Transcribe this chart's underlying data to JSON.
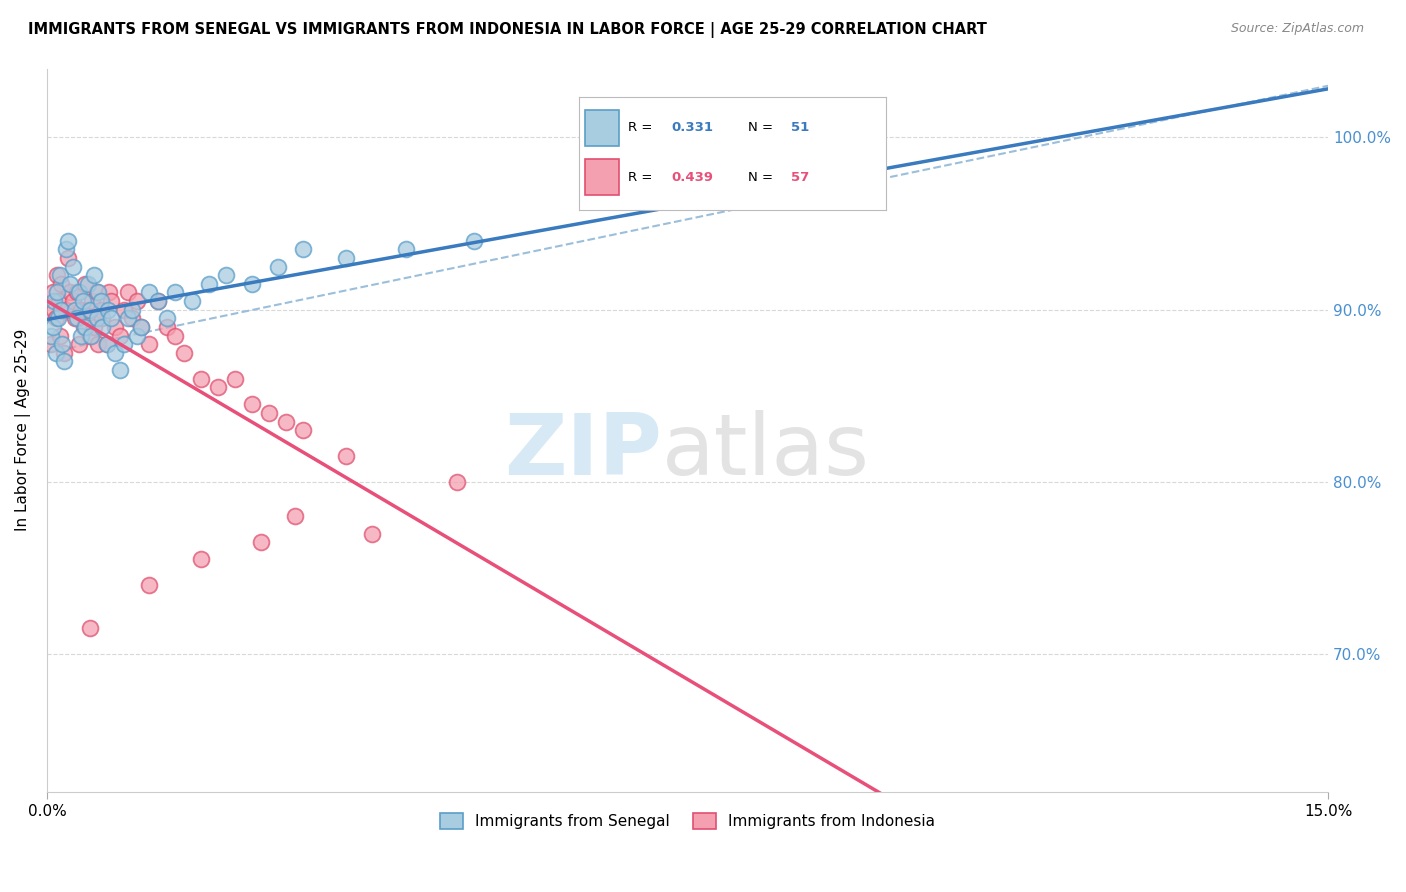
{
  "title": "IMMIGRANTS FROM SENEGAL VS IMMIGRANTS FROM INDONESIA IN LABOR FORCE | AGE 25-29 CORRELATION CHART",
  "source": "Source: ZipAtlas.com",
  "ylabel": "In Labor Force | Age 25-29",
  "xlim": [
    0.0,
    15.0
  ],
  "ylim": [
    62.0,
    104.0
  ],
  "yticks_right": [
    70.0,
    80.0,
    90.0,
    100.0
  ],
  "ytick_labels": [
    "70.0%",
    "80.0%",
    "90.0%",
    "100.0%"
  ],
  "color_blue_fill": "#a8cce0",
  "color_blue_edge": "#5b9ec9",
  "color_pink_fill": "#f4a0b0",
  "color_pink_edge": "#e05070",
  "color_blue_line": "#3a7abf",
  "color_pink_line": "#e8507a",
  "color_dashed": "#90b8d8",
  "color_grid": "#d8d8d8",
  "color_right_tick": "#4a90d0",
  "legend_r1": "0.331",
  "legend_n1": "51",
  "legend_r2": "0.439",
  "legend_n2": "57",
  "watermark_zip": "ZIP",
  "watermark_atlas": "atlas",
  "legend_label1": "Immigrants from Senegal",
  "legend_label2": "Immigrants from Indonesia",
  "senegal_x": [
    0.05,
    0.07,
    0.08,
    0.1,
    0.12,
    0.13,
    0.15,
    0.17,
    0.18,
    0.2,
    0.22,
    0.25,
    0.27,
    0.3,
    0.33,
    0.35,
    0.38,
    0.4,
    0.42,
    0.45,
    0.48,
    0.5,
    0.52,
    0.55,
    0.58,
    0.6,
    0.63,
    0.65,
    0.7,
    0.72,
    0.75,
    0.8,
    0.85,
    0.9,
    0.95,
    1.0,
    1.05,
    1.1,
    1.2,
    1.3,
    1.4,
    1.5,
    1.7,
    1.9,
    2.1,
    2.4,
    2.7,
    3.0,
    3.5,
    4.2,
    5.0
  ],
  "senegal_y": [
    88.5,
    89.0,
    90.5,
    87.5,
    91.0,
    89.5,
    92.0,
    90.0,
    88.0,
    87.0,
    93.5,
    94.0,
    91.5,
    92.5,
    90.0,
    89.5,
    91.0,
    88.5,
    90.5,
    89.0,
    91.5,
    90.0,
    88.5,
    92.0,
    89.5,
    91.0,
    90.5,
    89.0,
    88.0,
    90.0,
    89.5,
    87.5,
    86.5,
    88.0,
    89.5,
    90.0,
    88.5,
    89.0,
    91.0,
    90.5,
    89.5,
    91.0,
    90.5,
    91.5,
    92.0,
    91.5,
    92.5,
    93.5,
    93.0,
    93.5,
    94.0
  ],
  "indonesia_x": [
    0.05,
    0.07,
    0.08,
    0.1,
    0.12,
    0.14,
    0.15,
    0.17,
    0.2,
    0.22,
    0.25,
    0.27,
    0.3,
    0.33,
    0.35,
    0.38,
    0.4,
    0.43,
    0.45,
    0.48,
    0.5,
    0.53,
    0.55,
    0.58,
    0.6,
    0.63,
    0.65,
    0.7,
    0.73,
    0.75,
    0.8,
    0.85,
    0.9,
    0.95,
    1.0,
    1.05,
    1.1,
    1.2,
    1.3,
    1.4,
    1.5,
    1.6,
    1.8,
    2.0,
    2.2,
    2.4,
    2.6,
    2.8,
    3.0,
    3.5,
    1.8,
    2.5,
    3.8,
    0.5,
    1.2,
    2.9,
    4.8
  ],
  "indonesia_y": [
    88.0,
    91.0,
    90.0,
    89.5,
    92.0,
    90.5,
    88.5,
    91.5,
    87.5,
    90.0,
    93.0,
    91.0,
    90.5,
    89.5,
    91.0,
    88.0,
    90.0,
    89.0,
    91.5,
    90.0,
    88.5,
    90.5,
    89.0,
    91.0,
    88.0,
    90.0,
    89.5,
    88.0,
    91.0,
    90.5,
    89.0,
    88.5,
    90.0,
    91.0,
    89.5,
    90.5,
    89.0,
    88.0,
    90.5,
    89.0,
    88.5,
    87.5,
    86.0,
    85.5,
    86.0,
    84.5,
    84.0,
    83.5,
    83.0,
    81.5,
    75.5,
    76.5,
    77.0,
    71.5,
    74.0,
    78.0,
    80.0
  ]
}
